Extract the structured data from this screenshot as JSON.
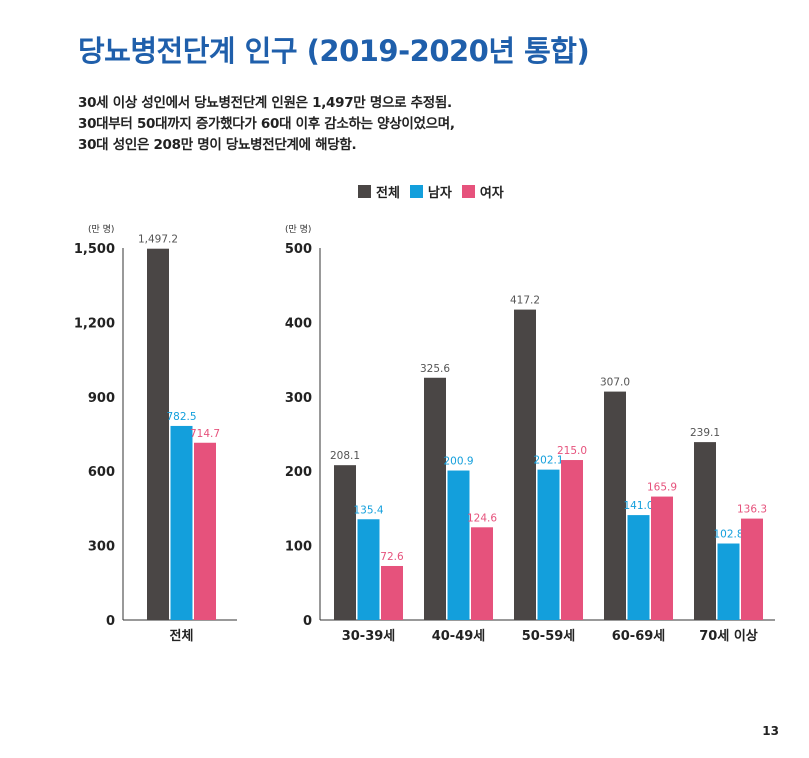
{
  "title": "당뇨병전단계 인구 (2019-2020년 통합)",
  "summary": [
    "30세 이상 성인에서 당뇨병전단계 인원은 1,497만 명으로 추정됨.",
    "30대부터 50대까지 증가했다가 60대 이후 감소하는 양상이었으며,",
    "30대 성인은 208만 명이 당뇨병전단계에 해당함."
  ],
  "page_number": "13",
  "colors": {
    "total": "#4a4645",
    "male": "#139fdc",
    "female": "#e6527c",
    "title": "#1f5fab",
    "total_label": "#555555"
  },
  "chart_data": [
    {
      "type": "bar",
      "title": "",
      "ylabel": "(만 명)",
      "xlabel": "",
      "ylim": [
        0,
        1500
      ],
      "yticks": [
        0,
        300,
        600,
        900,
        1200,
        1500
      ],
      "ytick_labels": [
        "0",
        "300",
        "600",
        "900",
        "1,200",
        "1,500"
      ],
      "categories": [
        "전체"
      ],
      "legend": "top",
      "series": [
        {
          "name": "전체",
          "key": "total",
          "values": [
            1497.2
          ],
          "labels": [
            "1,497.2"
          ]
        },
        {
          "name": "남자",
          "key": "male",
          "values": [
            782.5
          ],
          "labels": [
            "782.5"
          ]
        },
        {
          "name": "여자",
          "key": "female",
          "values": [
            714.7
          ],
          "labels": [
            "714.7"
          ]
        }
      ]
    },
    {
      "type": "bar",
      "title": "",
      "ylabel": "(만 명)",
      "xlabel": "",
      "ylim": [
        0,
        500
      ],
      "yticks": [
        0,
        100,
        200,
        300,
        400,
        500
      ],
      "ytick_labels": [
        "0",
        "100",
        "200",
        "300",
        "400",
        "500"
      ],
      "categories": [
        "30-39세",
        "40-49세",
        "50-59세",
        "60-69세",
        "70세 이상"
      ],
      "legend": "top",
      "series": [
        {
          "name": "전체",
          "key": "total",
          "values": [
            208.1,
            325.6,
            417.2,
            307.0,
            239.1
          ],
          "labels": [
            "208.1",
            "325.6",
            "417.2",
            "307.0",
            "239.1"
          ]
        },
        {
          "name": "남자",
          "key": "male",
          "values": [
            135.4,
            200.9,
            202.1,
            141.0,
            102.8
          ],
          "labels": [
            "135.4",
            "200.9",
            "202.1",
            "141.0",
            "102.8"
          ]
        },
        {
          "name": "여자",
          "key": "female",
          "values": [
            72.6,
            124.6,
            215.0,
            165.9,
            136.3
          ],
          "labels": [
            "72.6",
            "124.6",
            "215.0",
            "165.9",
            "136.3"
          ]
        }
      ]
    }
  ]
}
